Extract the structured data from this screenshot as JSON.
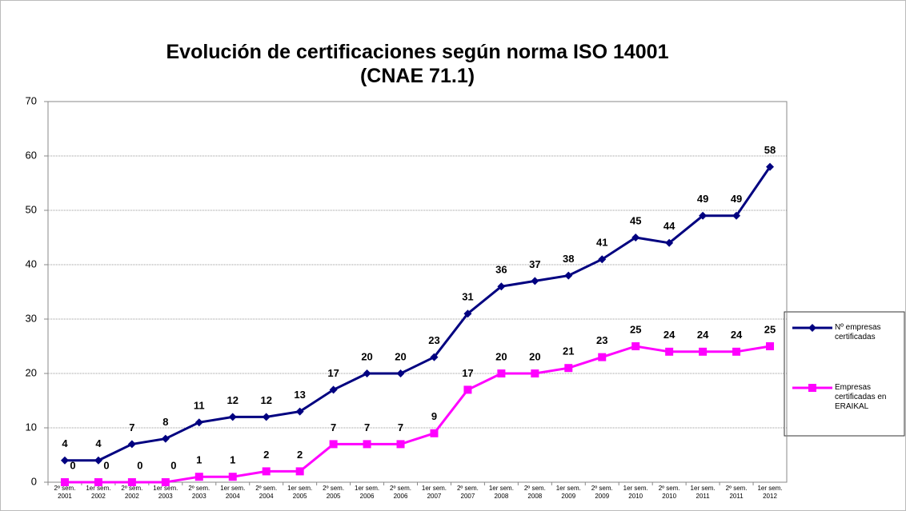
{
  "chart_data": {
    "type": "line",
    "title": "Evolución de certificaciones según norma ISO 14001\n(CNAE 71.1)",
    "categories": [
      "2º sem.\n2001",
      "1er sem.\n2002",
      "2º sem.\n2002",
      "1er sem.\n2003",
      "2º sem.\n2003",
      "1er sem.\n2004",
      "2º sem.\n2004",
      "1er sem.\n2005",
      "2º sem.\n2005",
      "1er sem.\n2006",
      "2º sem.\n2006",
      "1er sem.\n2007",
      "2º sem.\n2007",
      "1er sem.\n2008",
      "2º sem.\n2008",
      "1er sem.\n2009",
      "2º sem.\n2009",
      "1er sem.\n2010",
      "2º sem.\n2010",
      "1er sem.\n2011",
      "2º sem.\n2011",
      "1er sem.\n2012"
    ],
    "series": [
      {
        "name": "Nº empresas certificadas",
        "color": "#000080",
        "marker": "diamond",
        "values": [
          4,
          4,
          7,
          8,
          11,
          12,
          12,
          13,
          17,
          20,
          20,
          23,
          31,
          36,
          37,
          38,
          41,
          45,
          44,
          49,
          49,
          58
        ]
      },
      {
        "name": "Empresas certificadas en ERAIKAL",
        "color": "#ff00ff",
        "marker": "square",
        "values": [
          0,
          0,
          0,
          0,
          1,
          1,
          2,
          2,
          7,
          7,
          7,
          9,
          17,
          20,
          20,
          21,
          23,
          25,
          24,
          24,
          24,
          25
        ]
      }
    ],
    "ylim": [
      0,
      70
    ],
    "yticks": [
      0,
      10,
      20,
      30,
      40,
      50,
      60,
      70
    ],
    "grid": true,
    "legend": "right"
  }
}
